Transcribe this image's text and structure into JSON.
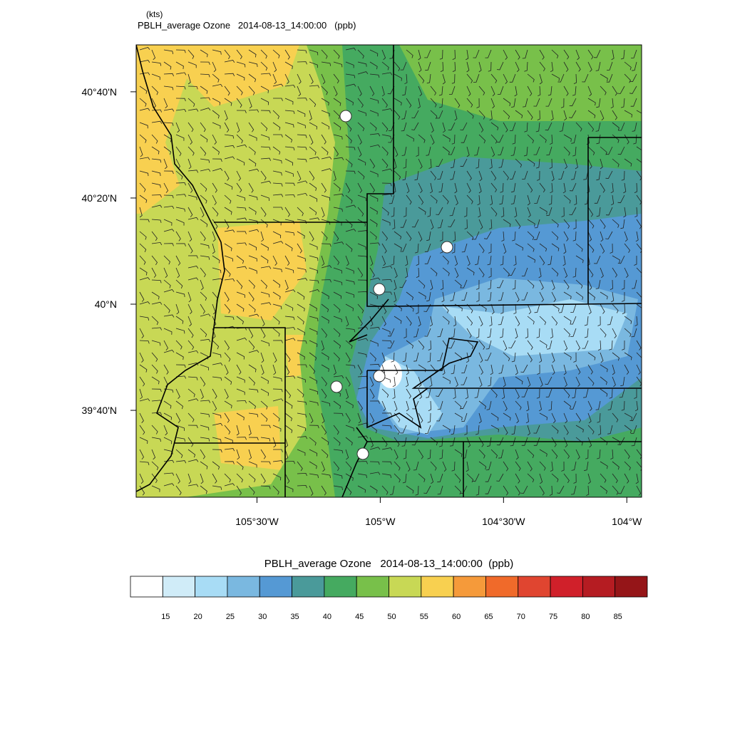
{
  "header": {
    "units": "(kts)",
    "title": "PBLH_average Ozone   2014-08-13_14:00:00   (ppb)"
  },
  "map": {
    "lonlim": [
      -105.99,
      -103.94
    ],
    "latlim": [
      39.394,
      40.814
    ],
    "lat_ticks": [
      {
        "value": 40.6667,
        "label": "40°40'N"
      },
      {
        "value": 40.3333,
        "label": "40°20'N"
      },
      {
        "value": 40,
        "label": "40°N"
      },
      {
        "value": 39.6667,
        "label": "39°40'N"
      }
    ],
    "lon_ticks": [
      {
        "value": -105.5,
        "label": "105°30'W"
      },
      {
        "value": -105,
        "label": "105°W"
      },
      {
        "value": -104.5,
        "label": "104°30'W"
      },
      {
        "value": -104,
        "label": "104°W"
      }
    ]
  },
  "colorbar": {
    "title": "PBLH_average Ozone   2014-08-13_14:00:00  (ppb)",
    "levels": [
      15,
      20,
      25,
      30,
      35,
      40,
      45,
      50,
      55,
      60,
      65,
      70,
      75,
      80,
      85
    ],
    "colors": [
      "#ffffff",
      "#d0ecf8",
      "#a8dcf5",
      "#7ab8e0",
      "#5599d4",
      "#4a9a9a",
      "#45aa60",
      "#78c04a",
      "#c8d855",
      "#f8d050",
      "#f59a3a",
      "#f06a2a",
      "#e04530",
      "#d0202a",
      "#b51c22",
      "#951518"
    ]
  }
}
